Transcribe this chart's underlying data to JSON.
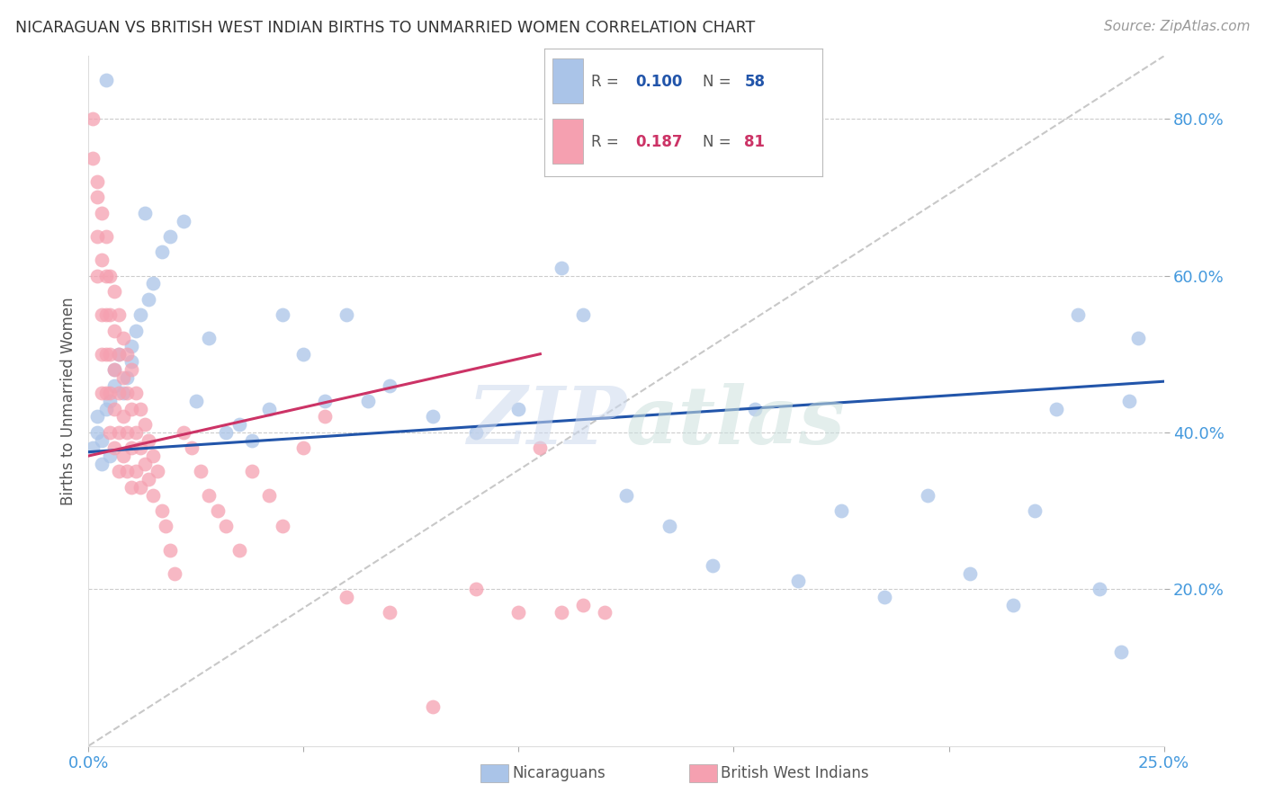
{
  "title": "NICARAGUAN VS BRITISH WEST INDIAN BIRTHS TO UNMARRIED WOMEN CORRELATION CHART",
  "source": "Source: ZipAtlas.com",
  "ylabel": "Births to Unmarried Women",
  "x_lim": [
    0.0,
    0.25
  ],
  "y_lim": [
    0.0,
    0.88
  ],
  "background_color": "#ffffff",
  "grid_color": "#cccccc",
  "watermark": "ZIPatlas",
  "blue_color": "#aac4e8",
  "pink_color": "#f5a0b0",
  "blue_line_color": "#2255aa",
  "pink_line_color": "#cc3366",
  "dashed_line_color": "#c8c8c8",
  "title_color": "#333333",
  "tick_label_color": "#4499dd",
  "source_color": "#999999",
  "blue_R": "0.100",
  "blue_N": "58",
  "pink_R": "0.187",
  "pink_N": "81",
  "blue_line_x": [
    0.0,
    0.25
  ],
  "blue_line_y": [
    0.375,
    0.465
  ],
  "pink_line_x": [
    0.0,
    0.105
  ],
  "pink_line_y": [
    0.37,
    0.5
  ],
  "dash_line_x": [
    0.0,
    0.25
  ],
  "dash_line_y": [
    0.0,
    0.88
  ],
  "blue_scatter_x": [
    0.001,
    0.002,
    0.002,
    0.003,
    0.003,
    0.004,
    0.004,
    0.005,
    0.005,
    0.006,
    0.006,
    0.007,
    0.008,
    0.009,
    0.01,
    0.01,
    0.011,
    0.012,
    0.013,
    0.014,
    0.015,
    0.017,
    0.019,
    0.022,
    0.025,
    0.028,
    0.032,
    0.035,
    0.038,
    0.042,
    0.045,
    0.05,
    0.055,
    0.06,
    0.065,
    0.07,
    0.08,
    0.09,
    0.1,
    0.11,
    0.115,
    0.125,
    0.135,
    0.145,
    0.155,
    0.165,
    0.175,
    0.185,
    0.195,
    0.205,
    0.215,
    0.22,
    0.225,
    0.23,
    0.235,
    0.24,
    0.242,
    0.244
  ],
  "blue_scatter_y": [
    0.38,
    0.4,
    0.42,
    0.36,
    0.39,
    0.85,
    0.43,
    0.37,
    0.44,
    0.46,
    0.48,
    0.5,
    0.45,
    0.47,
    0.49,
    0.51,
    0.53,
    0.55,
    0.68,
    0.57,
    0.59,
    0.63,
    0.65,
    0.67,
    0.44,
    0.52,
    0.4,
    0.41,
    0.39,
    0.43,
    0.55,
    0.5,
    0.44,
    0.55,
    0.44,
    0.46,
    0.42,
    0.4,
    0.43,
    0.61,
    0.55,
    0.32,
    0.28,
    0.23,
    0.43,
    0.21,
    0.3,
    0.19,
    0.32,
    0.22,
    0.18,
    0.3,
    0.43,
    0.55,
    0.2,
    0.12,
    0.44,
    0.52
  ],
  "pink_scatter_x": [
    0.001,
    0.001,
    0.002,
    0.002,
    0.002,
    0.002,
    0.003,
    0.003,
    0.003,
    0.003,
    0.003,
    0.004,
    0.004,
    0.004,
    0.004,
    0.004,
    0.005,
    0.005,
    0.005,
    0.005,
    0.005,
    0.006,
    0.006,
    0.006,
    0.006,
    0.006,
    0.007,
    0.007,
    0.007,
    0.007,
    0.007,
    0.008,
    0.008,
    0.008,
    0.008,
    0.009,
    0.009,
    0.009,
    0.009,
    0.01,
    0.01,
    0.01,
    0.01,
    0.011,
    0.011,
    0.011,
    0.012,
    0.012,
    0.012,
    0.013,
    0.013,
    0.014,
    0.014,
    0.015,
    0.015,
    0.016,
    0.017,
    0.018,
    0.019,
    0.02,
    0.022,
    0.024,
    0.026,
    0.028,
    0.03,
    0.032,
    0.035,
    0.038,
    0.042,
    0.045,
    0.05,
    0.055,
    0.06,
    0.07,
    0.08,
    0.09,
    0.1,
    0.105,
    0.11,
    0.115,
    0.12
  ],
  "pink_scatter_y": [
    0.8,
    0.75,
    0.7,
    0.65,
    0.6,
    0.72,
    0.68,
    0.62,
    0.55,
    0.5,
    0.45,
    0.65,
    0.6,
    0.55,
    0.5,
    0.45,
    0.6,
    0.55,
    0.5,
    0.45,
    0.4,
    0.58,
    0.53,
    0.48,
    0.43,
    0.38,
    0.55,
    0.5,
    0.45,
    0.4,
    0.35,
    0.52,
    0.47,
    0.42,
    0.37,
    0.5,
    0.45,
    0.4,
    0.35,
    0.48,
    0.43,
    0.38,
    0.33,
    0.45,
    0.4,
    0.35,
    0.43,
    0.38,
    0.33,
    0.41,
    0.36,
    0.39,
    0.34,
    0.37,
    0.32,
    0.35,
    0.3,
    0.28,
    0.25,
    0.22,
    0.4,
    0.38,
    0.35,
    0.32,
    0.3,
    0.28,
    0.25,
    0.35,
    0.32,
    0.28,
    0.38,
    0.42,
    0.19,
    0.17,
    0.05,
    0.2,
    0.17,
    0.38,
    0.17,
    0.18,
    0.17
  ]
}
